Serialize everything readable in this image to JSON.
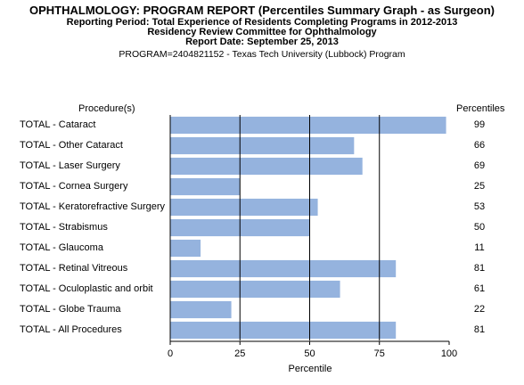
{
  "header": {
    "title": "OPHTHALMOLOGY: PROGRAM REPORT (Percentiles Summary Graph - as Surgeon)",
    "line2": "Reporting Period: Total Experience of Residents Completing Programs in 2012-2013",
    "line3": "Residency Review Committee for Ophthalmology",
    "line4": "Report Date: September 25, 2013",
    "program": "PROGRAM=2404821152  - Texas Tech University (Lubbock) Program"
  },
  "colors": {
    "bar": "#95b3de",
    "bar_edge": "#ffffff",
    "axis": "#000000"
  },
  "chart_data": {
    "type": "bar",
    "orientation": "horizontal",
    "row_header": "Procedure(s)",
    "value_header": "Percentiles",
    "xlabel": "Percentile",
    "xlim": [
      0,
      100
    ],
    "xticks": [
      0,
      25,
      50,
      75,
      100
    ],
    "reference_lines": [
      25,
      50,
      75
    ],
    "categories": [
      "TOTAL - Cataract",
      "TOTAL - Other Cataract",
      "TOTAL - Laser Surgery",
      "TOTAL - Cornea Surgery",
      "TOTAL - Keratorefractive Surgery",
      "TOTAL - Strabismus",
      "TOTAL - Glaucoma",
      "TOTAL - Retinal Vitreous",
      "TOTAL - Oculoplastic and orbit",
      "TOTAL - Globe Trauma",
      "TOTAL - All Procedures"
    ],
    "values": [
      99,
      66,
      69,
      25,
      53,
      50,
      11,
      81,
      61,
      22,
      81
    ]
  }
}
